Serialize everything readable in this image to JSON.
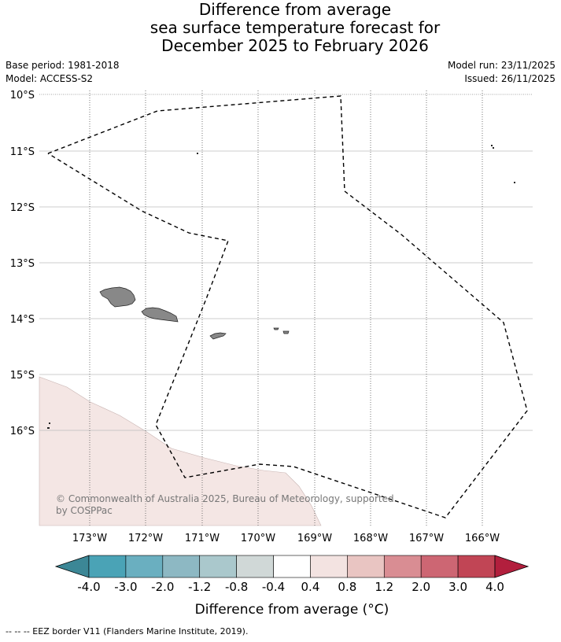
{
  "title": {
    "line1": "Difference from average",
    "line2": "sea surface temperature forecast for",
    "line3": "December 2025 to February 2026"
  },
  "meta": {
    "base_period": "Base period: 1981-2018",
    "model": "Model: ACCESS-S2",
    "model_run": "Model run: 23/11/2025",
    "issued": "Issued: 26/11/2025"
  },
  "map": {
    "lat_labels": [
      "10°S",
      "11°S",
      "12°S",
      "13°S",
      "14°S",
      "15°S",
      "16°S"
    ],
    "lon_labels": [
      "173°W",
      "172°W",
      "171°W",
      "170°W",
      "169°W",
      "168°W",
      "167°W",
      "166°W"
    ],
    "copyright": "© Commonwealth of Australia 2025, Bureau of Meteorology, supported",
    "copyright2": "by COSPPac",
    "anomaly_region_value": "0.4 to 0.8",
    "anomaly_region_color": "#f4e6e4",
    "land_color": "#888888"
  },
  "colorbar": {
    "tick_labels": [
      "-4.0",
      "-3.0",
      "-2.0",
      "-1.2",
      "-0.8",
      "-0.4",
      "0.4",
      "0.8",
      "1.2",
      "2.0",
      "3.0",
      "4.0"
    ],
    "colors": [
      "#3c8796",
      "#4aa3b6",
      "#6aafc0",
      "#8db8c3",
      "#aac8cc",
      "#d0d8d7",
      "#ffffff",
      "#f3e3e1",
      "#e9c5c2",
      "#d98d93",
      "#cd6673",
      "#c14555",
      "#b21f3d"
    ],
    "label": "Difference from average (°C)"
  },
  "footer": {
    "eez_note": "--  --  -- EEZ border V11 (Flanders Marine Institute, 2019)."
  }
}
